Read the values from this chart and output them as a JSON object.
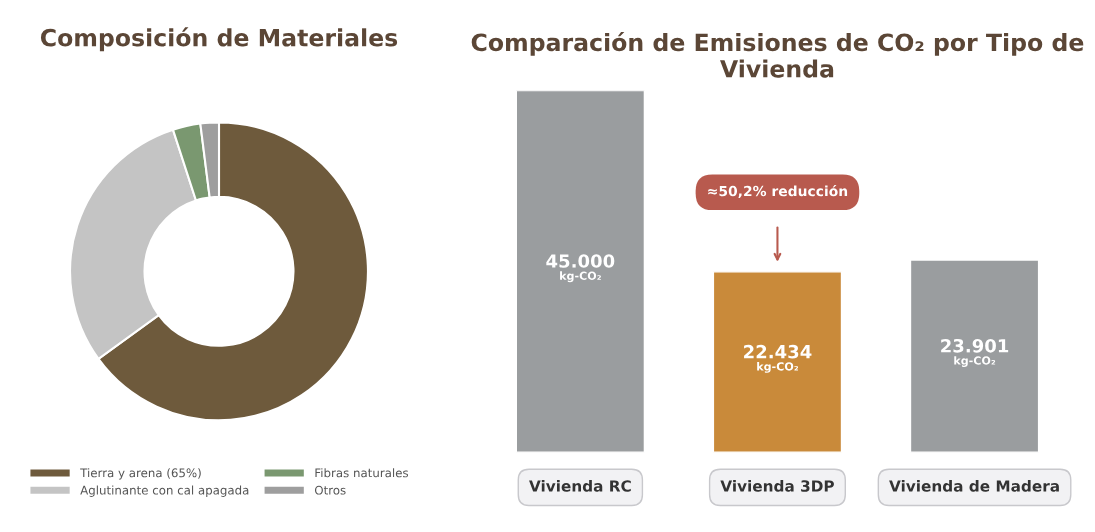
{
  "chart_data": [
    {
      "type": "donut",
      "title": "Composición de Materiales",
      "categories": [
        "Tierra y arena (65%)",
        "Aglutinante con cal apagada",
        "Fibras naturales",
        "Otros"
      ],
      "values": [
        65,
        30,
        3,
        2
      ],
      "colors": [
        "#6e5a3c",
        "#c4c4c4",
        "#7a9870",
        "#9e9e9e"
      ],
      "legend": "bottom"
    },
    {
      "type": "bar",
      "title": "Comparación de Emisiones de CO₂ por Tipo de Vivienda",
      "categories": [
        "Vivienda RC",
        "Vivienda 3DP",
        "Vivienda de Madera"
      ],
      "values": [
        45000,
        22434,
        23901
      ],
      "colors": [
        "#9a9d9f",
        "#c98a3a",
        "#9a9d9f"
      ],
      "value_labels": [
        "45.000\nkg-CO₂",
        "22.434\nkg-CO₂",
        "23.901\nkg-CO₂"
      ],
      "annotations": [
        "≈50,2% reducción"
      ]
    }
  ]
}
